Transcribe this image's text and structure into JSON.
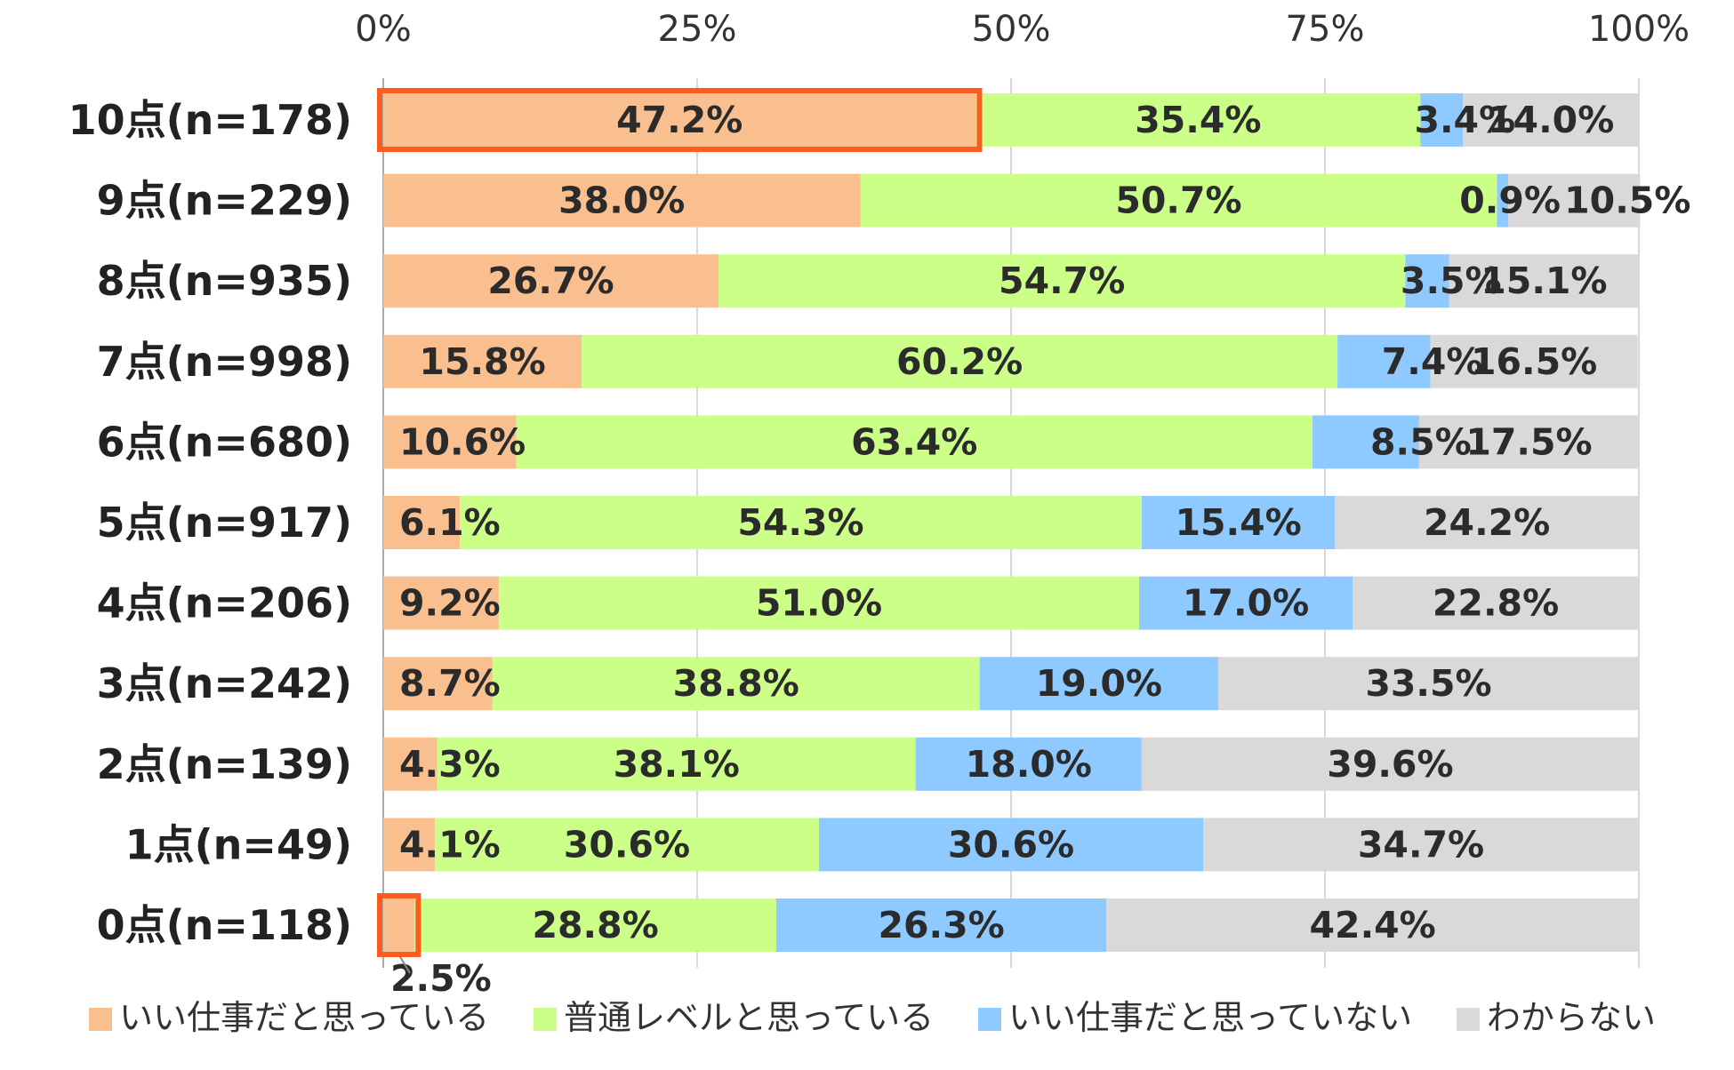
{
  "chart_data": {
    "type": "bar",
    "orientation": "horizontal",
    "stacked": "percent",
    "title": "",
    "xlabel": "",
    "ylabel": "",
    "xlim": [
      0,
      100
    ],
    "x_ticks": [
      "0%",
      "25%",
      "50%",
      "75%",
      "100%"
    ],
    "grid": true,
    "legend_position": "bottom",
    "categories": [
      "10点(n=178)",
      "9点(n=229)",
      "8点(n=935)",
      "7点(n=998)",
      "6点(n=680)",
      "5点(n=917)",
      "4点(n=206)",
      "3点(n=242)",
      "2点(n=139)",
      "1点(n=49)",
      "0点(n=118)"
    ],
    "series": [
      {
        "name": "いい仕事だと思っている",
        "color": "#FABF8F",
        "values": [
          47.2,
          38.0,
          26.7,
          15.8,
          10.6,
          6.1,
          9.2,
          8.7,
          4.3,
          4.1,
          2.5
        ],
        "labels": [
          "47.2%",
          "38.0%",
          "26.7%",
          "15.8%",
          "10.6%",
          "6.1%",
          "9.2%",
          "8.7%",
          "4.3%",
          "4.1%",
          "2.5%"
        ]
      },
      {
        "name": "普通レベルと思っている",
        "color": "#CCFF88",
        "values": [
          35.4,
          50.7,
          54.7,
          60.2,
          63.4,
          54.3,
          51.0,
          38.8,
          38.1,
          30.6,
          28.8
        ],
        "labels": [
          "35.4%",
          "50.7%",
          "54.7%",
          "60.2%",
          "63.4%",
          "54.3%",
          "51.0%",
          "38.8%",
          "38.1%",
          "30.6%",
          "28.8%"
        ]
      },
      {
        "name": "いい仕事だと思っていない",
        "color": "#8ECAFF",
        "values": [
          3.4,
          0.9,
          3.5,
          7.4,
          8.5,
          15.4,
          17.0,
          19.0,
          18.0,
          30.6,
          26.3
        ],
        "labels": [
          "3.4%",
          "0.9%",
          "3.5%",
          "7.4%",
          "8.5%",
          "15.4%",
          "17.0%",
          "19.0%",
          "18.0%",
          "30.6%",
          "26.3%"
        ]
      },
      {
        "name": "わからない",
        "color": "#D9D9D9",
        "values": [
          14.0,
          10.5,
          15.1,
          16.5,
          17.5,
          24.2,
          22.8,
          33.5,
          39.6,
          34.7,
          42.4
        ],
        "labels": [
          "14.0%",
          "10.5%",
          "15.1%",
          "16.5%",
          "17.5%",
          "24.2%",
          "22.8%",
          "33.5%",
          "39.6%",
          "34.7%",
          "42.4%"
        ]
      }
    ],
    "highlights": [
      {
        "category": "10点(n=178)",
        "series": "いい仕事だと思っている",
        "color": "#FF5A1F"
      },
      {
        "category": "0点(n=118)",
        "series": "いい仕事だと思っている",
        "color": "#FF5A1F"
      }
    ],
    "colors": {
      "grid": "#CCCCCC",
      "axis": "#AAAAAA"
    }
  }
}
